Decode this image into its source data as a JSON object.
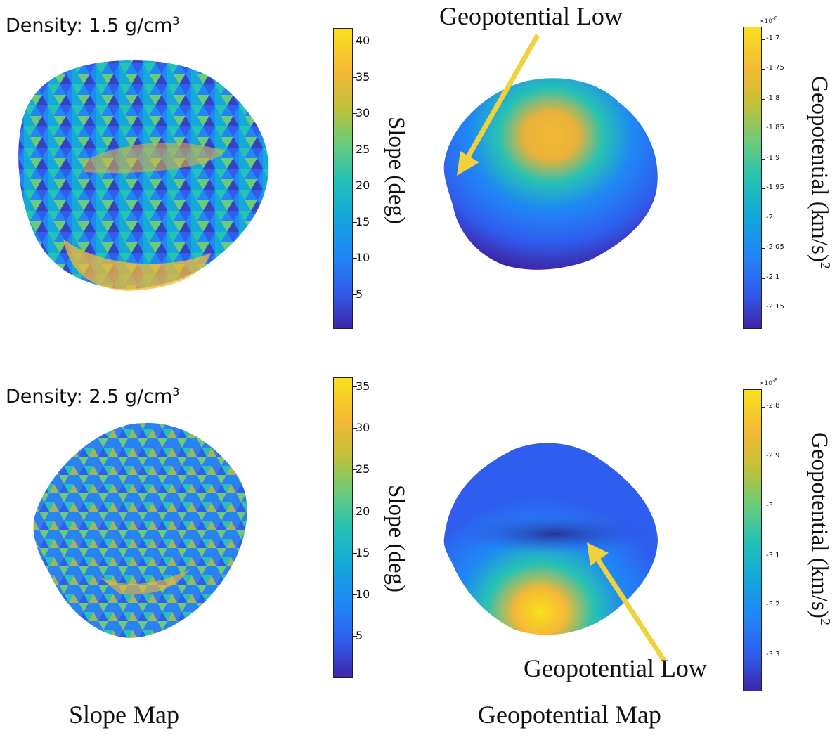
{
  "panels": [
    {
      "density_label": "Density: 1.5 g/cm",
      "density_sup": "3",
      "slope_colorbar": {
        "title": "Slope (deg)",
        "ticks": [
          "40",
          "35",
          "30",
          "25",
          "20",
          "15",
          "10",
          "5"
        ]
      },
      "geo_colorbar": {
        "title": "Geopotential (km/s)",
        "title_sup": "2",
        "exponent": "×10",
        "exponent_sup": "-8",
        "ticks": [
          "-1.7",
          "-1.75",
          "-1.8",
          "-1.85",
          "-1.9",
          "-1.95",
          "-2",
          "-2.05",
          "-2.1",
          "-2.15"
        ]
      },
      "annotation": "Geopotential Low"
    },
    {
      "density_label": "Density: 2.5 g/cm",
      "density_sup": "3",
      "slope_colorbar": {
        "title": "Slope (deg)",
        "ticks": [
          "35",
          "30",
          "25",
          "20",
          "15",
          "10",
          "5"
        ]
      },
      "geo_colorbar": {
        "title": "Geopotential (km/s)",
        "title_sup": "2",
        "exponent": "×10",
        "exponent_sup": "-8",
        "ticks": [
          "-2.8",
          "-2.9",
          "-3",
          "-3.1",
          "-3.2",
          "-3.3"
        ]
      },
      "annotation": "Geopotential Low"
    }
  ],
  "captions": {
    "slope_map": "Slope Map",
    "geopotential_map": "Geopotential Map"
  },
  "colors": {
    "arrow": "#f2d23c",
    "colormap": [
      "#3e26a8",
      "#1f88f5",
      "#26c2b3",
      "#c1c13a",
      "#f9e11e"
    ]
  }
}
